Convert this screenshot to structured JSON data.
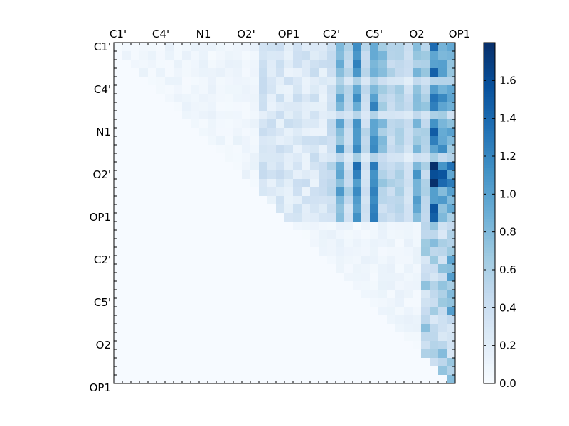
{
  "chart_data": {
    "type": "heatmap",
    "title": "",
    "xlabel": "",
    "ylabel": "",
    "n": 40,
    "x_tick_labels": [
      "C1'",
      "C4'",
      "N1",
      "O2'",
      "OP1",
      "C2'",
      "C5'",
      "O2",
      "OP1"
    ],
    "y_tick_labels": [
      "C1'",
      "C4'",
      "N1",
      "O2'",
      "OP1",
      "C2'",
      "C5'",
      "O2",
      "OP1"
    ],
    "colorbar": {
      "min": 0.0,
      "max": 1.8,
      "tick_labels": [
        "0.0",
        "0.2",
        "0.4",
        "0.6",
        "0.8",
        "1.0",
        "1.2",
        "1.4",
        "1.6"
      ],
      "tick_values": [
        0.0,
        0.2,
        0.4,
        0.6,
        0.8,
        1.0,
        1.2,
        1.4,
        1.6
      ]
    },
    "colormap": "Blues",
    "colors": {
      "low": "#f7fbff",
      "high": "#08306b"
    },
    "column_profiles": {
      "cols": [
        25,
        26,
        27,
        28,
        29,
        30,
        31,
        32,
        33,
        34,
        35,
        36,
        37,
        38,
        39
      ],
      "top_band_values": [
        0.45,
        0.9,
        0.5,
        1.1,
        0.45,
        1.05,
        0.7,
        0.5,
        0.55,
        0.4,
        0.75,
        0.6,
        1.25,
        1.0,
        0.85
      ],
      "o2_band_values": [
        0.5,
        0.95,
        0.45,
        1.2,
        0.4,
        1.3,
        0.6,
        0.55,
        0.6,
        0.35,
        1.0,
        0.55,
        1.75,
        1.35,
        1.2
      ],
      "op1_band_values": [
        0.4,
        0.8,
        0.4,
        0.95,
        0.4,
        1.15,
        0.45,
        0.45,
        0.5,
        0.3,
        0.9,
        0.45,
        1.3,
        0.9,
        0.8
      ]
    },
    "right_block_rows": [
      {
        "row": 22,
        "value": 0.6
      },
      {
        "row": 25,
        "value": 1.0
      },
      {
        "row": 27,
        "value": 1.0
      },
      {
        "row": 29,
        "value": 0.8
      },
      {
        "row": 30,
        "value": 0.7
      },
      {
        "row": 31,
        "value": 1.0
      },
      {
        "row": 32,
        "value": 0.5
      }
    ]
  }
}
